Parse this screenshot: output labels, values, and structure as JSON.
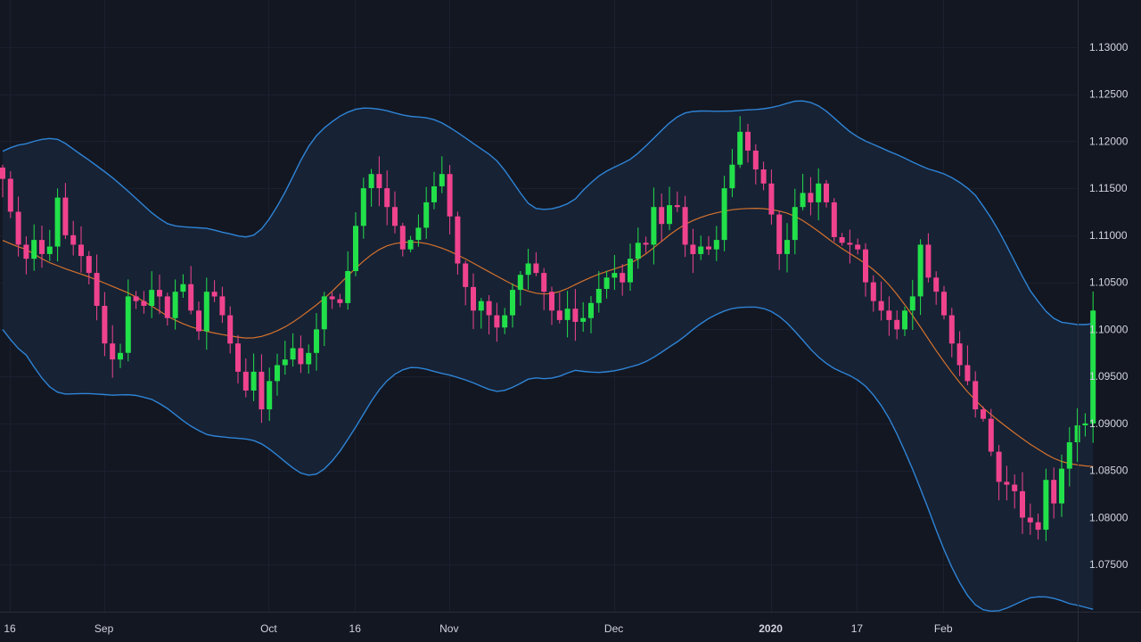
{
  "chart_data": {
    "type": "candlestick",
    "symbol": "",
    "title": "",
    "ylim": [
      1.07,
      1.135
    ],
    "y_ticks": [
      "1.07500",
      "1.08000",
      "1.08500",
      "1.09000",
      "1.09500",
      "1.10000",
      "1.10500",
      "1.11000",
      "1.11500",
      "1.12000",
      "1.12500",
      "1.13000"
    ],
    "x_ticks": [
      {
        "label": "16",
        "i": 0
      },
      {
        "label": "Sep",
        "i": 12
      },
      {
        "label": "Oct",
        "i": 33
      },
      {
        "label": "16",
        "i": 44
      },
      {
        "label": "Nov",
        "i": 56
      },
      {
        "label": "Dec",
        "i": 77
      },
      {
        "label": "2020",
        "i": 97,
        "bold": true
      },
      {
        "label": "17",
        "i": 108
      },
      {
        "label": "Feb",
        "i": 119
      }
    ],
    "grid": true,
    "colors": {
      "background": "#131722",
      "up": "#22e04a",
      "down": "#f0438d",
      "band": "#2e84d6",
      "band_fill": "#172235",
      "basis": "#d5722c",
      "axis_text": "#d1d4dc",
      "grid": "#1b2030"
    },
    "closes": [
      1.116,
      1.1125,
      1.109,
      1.1075,
      1.1095,
      1.108,
      1.1088,
      1.114,
      1.11,
      1.109,
      1.1078,
      1.106,
      1.1025,
      1.0985,
      1.0968,
      1.0975,
      1.1035,
      1.103,
      1.1025,
      1.1042,
      1.1035,
      1.1012,
      1.104,
      1.1048,
      1.102,
      1.0998,
      1.104,
      1.1035,
      1.1015,
      1.0985,
      1.0955,
      1.0935,
      1.0955,
      1.0915,
      1.0945,
      1.0962,
      1.0968,
      1.098,
      1.0963,
      1.0975,
      1.1,
      1.1035,
      1.1032,
      1.1028,
      1.1062,
      1.111,
      1.115,
      1.1165,
      1.115,
      1.113,
      1.111,
      1.1085,
      1.1095,
      1.1108,
      1.1135,
      1.1152,
      1.1165,
      1.112,
      1.107,
      1.1045,
      1.102,
      1.103,
      1.1015,
      1.1002,
      1.1015,
      1.1042,
      1.1058,
      1.107,
      1.106,
      1.104,
      1.102,
      1.101,
      1.1022,
      1.1008,
      1.1012,
      1.1028,
      1.1043,
      1.1055,
      1.106,
      1.105,
      1.1075,
      1.1092,
      1.109,
      1.113,
      1.1112,
      1.1132,
      1.113,
      1.109,
      1.108,
      1.1088,
      1.1085,
      1.1095,
      1.115,
      1.1175,
      1.121,
      1.119,
      1.117,
      1.1155,
      1.1122,
      1.108,
      1.1095,
      1.113,
      1.1145,
      1.1135,
      1.1155,
      1.1135,
      1.1098,
      1.1092,
      1.109,
      1.1085,
      1.105,
      1.103,
      1.102,
      1.101,
      1.1,
      1.102,
      1.1035,
      1.109,
      1.1055,
      1.104,
      1.1015,
      1.0985,
      1.0962,
      1.0945,
      1.0915,
      1.0905,
      1.087,
      1.0838,
      1.0835,
      1.0828,
      1.08,
      1.0795,
      1.0787,
      1.084,
      1.0815,
      1.0852,
      1.088,
      1.0898,
      1.09,
      1.102
    ]
  }
}
